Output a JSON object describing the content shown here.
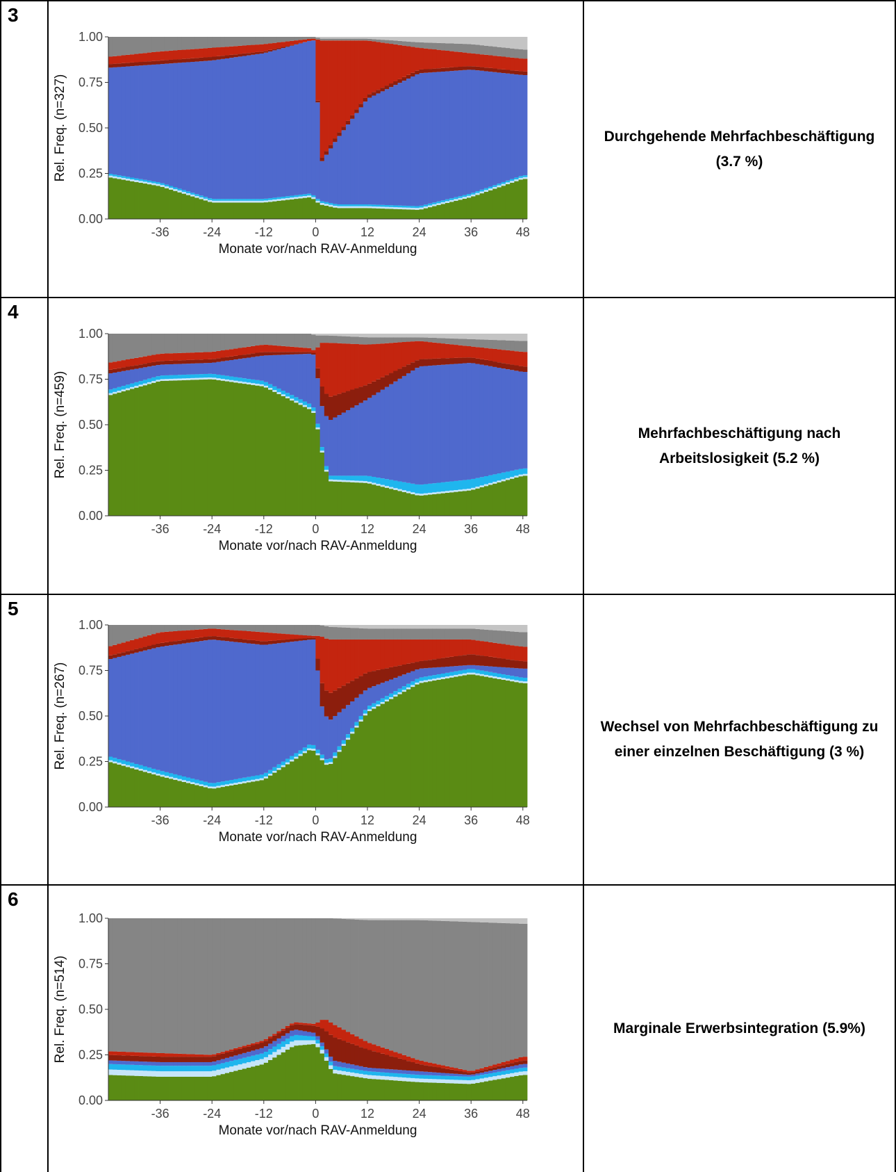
{
  "colors": {
    "green": "#5a8b14",
    "light_blue": "#c6e5f9",
    "cyan": "#1fb6ee",
    "blue": "#4f69cd",
    "dark_red": "#8c1e0d",
    "red": "#c4250f",
    "gray": "#858585",
    "light_gray": "#c4c4c4"
  },
  "panels": [
    {
      "number": "3",
      "label": "Durchgehende Mehrfachbeschäftigung (3.7 %)",
      "chart_data": {
        "type": "area",
        "x_ticks": [
          -36,
          -24,
          -12,
          0,
          12,
          24,
          36,
          48
        ],
        "y_ticks": [
          "0.00",
          "0.25",
          "0.50",
          "0.75",
          "1.00"
        ],
        "ylim": [
          0,
          1
        ],
        "xlim": [
          -48,
          49
        ],
        "xlabel": "Monate vor/nach RAV-Anmeldung",
        "ylabel": "Rel. Freq. (n=327)",
        "layers": [
          "green",
          "light_blue",
          "cyan",
          "blue",
          "dark_red",
          "red",
          "gray",
          "light_gray"
        ],
        "anchors": [
          [
            -48,
            [
              0.23,
              0.01,
              0.01,
              0.58,
              0.02,
              0.04,
              0.11,
              0.0
            ]
          ],
          [
            -36,
            [
              0.18,
              0.01,
              0.01,
              0.65,
              0.02,
              0.05,
              0.08,
              0.0
            ]
          ],
          [
            -24,
            [
              0.09,
              0.01,
              0.01,
              0.76,
              0.02,
              0.05,
              0.06,
              0.0
            ]
          ],
          [
            -12,
            [
              0.09,
              0.01,
              0.01,
              0.8,
              0.01,
              0.04,
              0.04,
              0.0
            ]
          ],
          [
            -1,
            [
              0.12,
              0.01,
              0.01,
              0.84,
              0.0,
              0.01,
              0.01,
              0.0
            ]
          ],
          [
            0,
            [
              0.1,
              0.01,
              0.01,
              0.86,
              0.0,
              0.01,
              0.01,
              0.0
            ]
          ],
          [
            1,
            [
              0.08,
              0.01,
              0.01,
              0.2,
              0.02,
              0.66,
              0.01,
              0.01
            ]
          ],
          [
            5,
            [
              0.06,
              0.01,
              0.01,
              0.36,
              0.02,
              0.52,
              0.01,
              0.01
            ]
          ],
          [
            12,
            [
              0.06,
              0.01,
              0.01,
              0.58,
              0.02,
              0.3,
              0.01,
              0.01
            ]
          ],
          [
            24,
            [
              0.05,
              0.01,
              0.01,
              0.73,
              0.02,
              0.12,
              0.03,
              0.03
            ]
          ],
          [
            36,
            [
              0.12,
              0.01,
              0.01,
              0.68,
              0.02,
              0.07,
              0.05,
              0.04
            ]
          ],
          [
            48,
            [
              0.22,
              0.01,
              0.01,
              0.55,
              0.02,
              0.07,
              0.05,
              0.07
            ]
          ]
        ]
      }
    },
    {
      "number": "4",
      "label": "Mehrfachbeschäftigung nach Arbeitslosigkeit (5.2 %)",
      "chart_data": {
        "type": "area",
        "x_ticks": [
          -36,
          -24,
          -12,
          0,
          12,
          24,
          36,
          48
        ],
        "y_ticks": [
          "0.00",
          "0.25",
          "0.50",
          "0.75",
          "1.00"
        ],
        "ylim": [
          0,
          1
        ],
        "xlim": [
          -48,
          49
        ],
        "xlabel": "Monate vor/nach RAV-Anmeldung",
        "ylabel": "Rel. Freq. (n=459)",
        "layers": [
          "green",
          "light_blue",
          "cyan",
          "blue",
          "dark_red",
          "red",
          "gray",
          "light_gray"
        ],
        "anchors": [
          [
            -48,
            [
              0.66,
              0.01,
              0.02,
              0.09,
              0.02,
              0.04,
              0.16,
              0.0
            ]
          ],
          [
            -36,
            [
              0.74,
              0.01,
              0.02,
              0.06,
              0.02,
              0.04,
              0.11,
              0.0
            ]
          ],
          [
            -24,
            [
              0.75,
              0.01,
              0.02,
              0.06,
              0.02,
              0.04,
              0.1,
              0.0
            ]
          ],
          [
            -12,
            [
              0.71,
              0.01,
              0.02,
              0.14,
              0.02,
              0.04,
              0.06,
              0.0
            ]
          ],
          [
            -1,
            [
              0.58,
              0.01,
              0.02,
              0.28,
              0.01,
              0.02,
              0.08,
              0.0
            ]
          ],
          [
            0,
            [
              0.55,
              0.01,
              0.02,
              0.3,
              0.01,
              0.01,
              0.09,
              0.01
            ]
          ],
          [
            1,
            [
              0.4,
              0.01,
              0.02,
              0.2,
              0.1,
              0.22,
              0.04,
              0.01
            ]
          ],
          [
            3,
            [
              0.19,
              0.01,
              0.02,
              0.3,
              0.13,
              0.3,
              0.04,
              0.01
            ]
          ],
          [
            12,
            [
              0.18,
              0.01,
              0.03,
              0.42,
              0.08,
              0.22,
              0.04,
              0.02
            ]
          ],
          [
            24,
            [
              0.11,
              0.01,
              0.05,
              0.65,
              0.04,
              0.1,
              0.02,
              0.02
            ]
          ],
          [
            36,
            [
              0.14,
              0.01,
              0.05,
              0.64,
              0.03,
              0.06,
              0.04,
              0.03
            ]
          ],
          [
            48,
            [
              0.22,
              0.01,
              0.03,
              0.53,
              0.03,
              0.08,
              0.06,
              0.04
            ]
          ]
        ]
      }
    },
    {
      "number": "5",
      "label": "Wechsel von Mehrfachbeschäftigung zu einer einzelnen Beschäftigung (3 %)",
      "chart_data": {
        "type": "area",
        "x_ticks": [
          -36,
          -24,
          -12,
          0,
          12,
          24,
          36,
          48
        ],
        "y_ticks": [
          "0.00",
          "0.25",
          "0.50",
          "0.75",
          "1.00"
        ],
        "ylim": [
          0,
          1
        ],
        "xlim": [
          -48,
          49
        ],
        "xlabel": "Monate vor/nach RAV-Anmeldung",
        "ylabel": "Rel. Freq. (n=267)",
        "layers": [
          "green",
          "light_blue",
          "cyan",
          "blue",
          "dark_red",
          "red",
          "gray",
          "light_gray"
        ],
        "anchors": [
          [
            -48,
            [
              0.25,
              0.01,
              0.02,
              0.53,
              0.02,
              0.05,
              0.12,
              0.0
            ]
          ],
          [
            -36,
            [
              0.17,
              0.01,
              0.02,
              0.68,
              0.02,
              0.06,
              0.04,
              0.0
            ]
          ],
          [
            -24,
            [
              0.1,
              0.01,
              0.02,
              0.79,
              0.02,
              0.04,
              0.02,
              0.0
            ]
          ],
          [
            -12,
            [
              0.15,
              0.01,
              0.02,
              0.71,
              0.02,
              0.05,
              0.04,
              0.0
            ]
          ],
          [
            -1,
            [
              0.32,
              0.01,
              0.02,
              0.57,
              0.01,
              0.01,
              0.06,
              0.0
            ]
          ],
          [
            0,
            [
              0.3,
              0.01,
              0.02,
              0.59,
              0.01,
              0.01,
              0.06,
              0.0
            ]
          ],
          [
            1,
            [
              0.27,
              0.01,
              0.02,
              0.28,
              0.12,
              0.24,
              0.06,
              0.0
            ]
          ],
          [
            3,
            [
              0.22,
              0.01,
              0.02,
              0.22,
              0.15,
              0.3,
              0.07,
              0.01
            ]
          ],
          [
            12,
            [
              0.52,
              0.01,
              0.02,
              0.1,
              0.09,
              0.18,
              0.06,
              0.02
            ]
          ],
          [
            24,
            [
              0.68,
              0.01,
              0.02,
              0.05,
              0.04,
              0.12,
              0.06,
              0.02
            ]
          ],
          [
            36,
            [
              0.73,
              0.01,
              0.02,
              0.02,
              0.06,
              0.08,
              0.06,
              0.02
            ]
          ],
          [
            48,
            [
              0.68,
              0.01,
              0.02,
              0.05,
              0.04,
              0.08,
              0.08,
              0.04
            ]
          ]
        ]
      }
    },
    {
      "number": "6",
      "label": "Marginale Erwerbsintegration (5.9%)",
      "chart_data": {
        "type": "area",
        "x_ticks": [
          -36,
          -24,
          -12,
          0,
          12,
          24,
          36,
          48
        ],
        "y_ticks": [
          "0.00",
          "0.25",
          "0.50",
          "0.75",
          "1.00"
        ],
        "ylim": [
          0,
          1
        ],
        "xlim": [
          -48,
          49
        ],
        "xlabel": "Monate vor/nach RAV-Anmeldung",
        "ylabel": "Rel. Freq. (n=514)",
        "layers": [
          "green",
          "light_blue",
          "cyan",
          "blue",
          "dark_red",
          "red",
          "gray",
          "light_gray"
        ],
        "anchors": [
          [
            -48,
            [
              0.14,
              0.03,
              0.03,
              0.02,
              0.03,
              0.02,
              0.73,
              0.0
            ]
          ],
          [
            -36,
            [
              0.13,
              0.03,
              0.03,
              0.02,
              0.03,
              0.02,
              0.74,
              0.0
            ]
          ],
          [
            -24,
            [
              0.13,
              0.03,
              0.03,
              0.02,
              0.03,
              0.01,
              0.75,
              0.0
            ]
          ],
          [
            -12,
            [
              0.2,
              0.03,
              0.03,
              0.03,
              0.03,
              0.01,
              0.67,
              0.0
            ]
          ],
          [
            -5,
            [
              0.3,
              0.03,
              0.03,
              0.03,
              0.03,
              0.01,
              0.57,
              0.0
            ]
          ],
          [
            0,
            [
              0.31,
              0.02,
              0.02,
              0.02,
              0.04,
              0.01,
              0.58,
              0.0
            ]
          ],
          [
            2,
            [
              0.24,
              0.02,
              0.02,
              0.02,
              0.09,
              0.06,
              0.55,
              0.0
            ]
          ],
          [
            4,
            [
              0.15,
              0.02,
              0.02,
              0.03,
              0.13,
              0.07,
              0.58,
              0.0
            ]
          ],
          [
            12,
            [
              0.12,
              0.02,
              0.02,
              0.02,
              0.1,
              0.04,
              0.67,
              0.01
            ]
          ],
          [
            24,
            [
              0.1,
              0.02,
              0.02,
              0.02,
              0.04,
              0.02,
              0.77,
              0.01
            ]
          ],
          [
            36,
            [
              0.09,
              0.02,
              0.02,
              0.01,
              0.01,
              0.01,
              0.82,
              0.02
            ]
          ],
          [
            48,
            [
              0.14,
              0.02,
              0.02,
              0.02,
              0.02,
              0.02,
              0.73,
              0.03
            ]
          ]
        ]
      }
    }
  ]
}
